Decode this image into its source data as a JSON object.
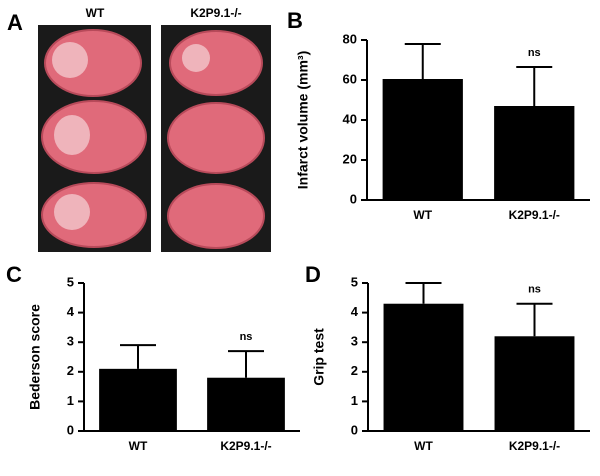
{
  "image_panel": {
    "panel": "A",
    "labels": [
      "WT",
      "K2P9.1-/-"
    ]
  },
  "chart_data": [
    {
      "type": "bar",
      "panel": "B",
      "ylabel": "Infarct volume (mm³)",
      "categories": [
        "WT",
        "K2P9.1-/-"
      ],
      "values": [
        60.5,
        47
      ],
      "errors": [
        17.5,
        19.5
      ],
      "color": "#000000",
      "ylim": [
        0,
        80
      ],
      "yticks": [
        0,
        20,
        40,
        60,
        80
      ],
      "annotation": "ns"
    },
    {
      "type": "bar",
      "panel": "C",
      "ylabel": "Bederson score",
      "categories": [
        "WT",
        "K2P9.1-/-"
      ],
      "values": [
        2.1,
        1.8
      ],
      "errors": [
        0.8,
        0.9
      ],
      "color": "#000000",
      "ylim": [
        0,
        5
      ],
      "yticks": [
        0,
        1,
        2,
        3,
        4,
        5
      ],
      "annotation": "ns"
    },
    {
      "type": "bar",
      "panel": "D",
      "ylabel": "Grip test",
      "categories": [
        "WT",
        "K2P9.1-/-"
      ],
      "values": [
        4.3,
        3.2
      ],
      "errors": [
        0.7,
        1.1
      ],
      "color": "#000000",
      "ylim": [
        0,
        5
      ],
      "yticks": [
        0,
        1,
        2,
        3,
        4,
        5
      ],
      "annotation": "ns"
    }
  ]
}
